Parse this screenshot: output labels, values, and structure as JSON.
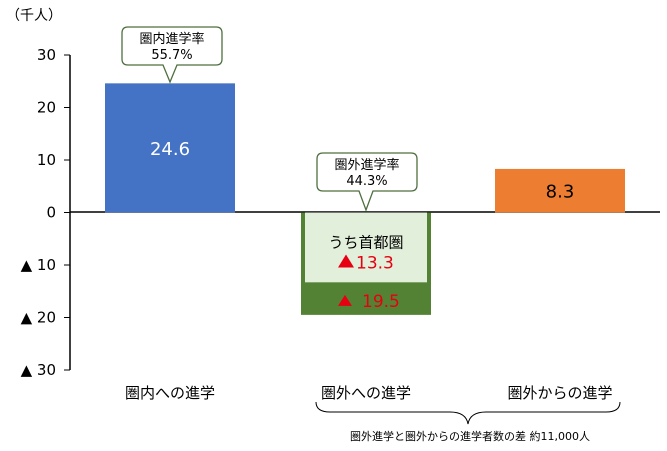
{
  "chart_data": {
    "type": "bar",
    "unit_label": "（千人）",
    "y_ticks": [
      "30",
      "20",
      "10",
      "0",
      "▲ 10",
      "▲ 20",
      "▲ 30"
    ],
    "ylim": [
      -30,
      30
    ],
    "categories": [
      "圏内への進学",
      "圏外への進学",
      "圏外からの進学"
    ],
    "values": [
      24.6,
      -19.5,
      8.3
    ],
    "value_labels": [
      "24.6",
      "▲ 19.5",
      "8.3"
    ],
    "colors": [
      "#4472c4",
      "#548235",
      "#ed7d31"
    ],
    "sub_segment": {
      "category": "圏外への進学",
      "label": "うち首都圏",
      "value": -13.3,
      "value_label": "▲13.3",
      "color": "#e2efda"
    },
    "callouts": [
      {
        "category": "圏内への進学",
        "line1": "圏内進学率",
        "line2": "55.7%"
      },
      {
        "category": "圏外への進学",
        "line1": "圏外進学率",
        "line2": "44.3%"
      }
    ],
    "note": "圏外進学と圏外からの進学者数の差 約11,000人"
  }
}
